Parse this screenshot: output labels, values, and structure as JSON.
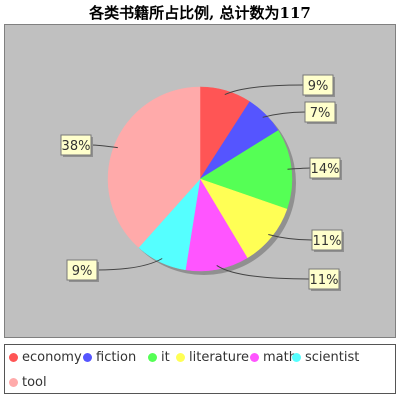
{
  "chart_data": {
    "type": "pie",
    "title": "各类书籍所占比例, 总计数为117",
    "slices": [
      {
        "label": "economy",
        "percent": 9,
        "color": "#FF5555"
      },
      {
        "label": "fiction",
        "percent": 7,
        "color": "#5555FF"
      },
      {
        "label": "it",
        "percent": 14,
        "color": "#55FF55"
      },
      {
        "label": "literature",
        "percent": 11,
        "color": "#FFFF55"
      },
      {
        "label": "math",
        "percent": 11,
        "color": "#FF55FF"
      },
      {
        "label": "scientist",
        "percent": 9,
        "color": "#55FFFF"
      },
      {
        "label": "tool",
        "percent": 38,
        "color": "#FFAAAA"
      }
    ],
    "label_format": "percent",
    "legend_position": "bottom",
    "plot_background": "#C0C0C0",
    "label_box_background": "#FFFFCC"
  }
}
